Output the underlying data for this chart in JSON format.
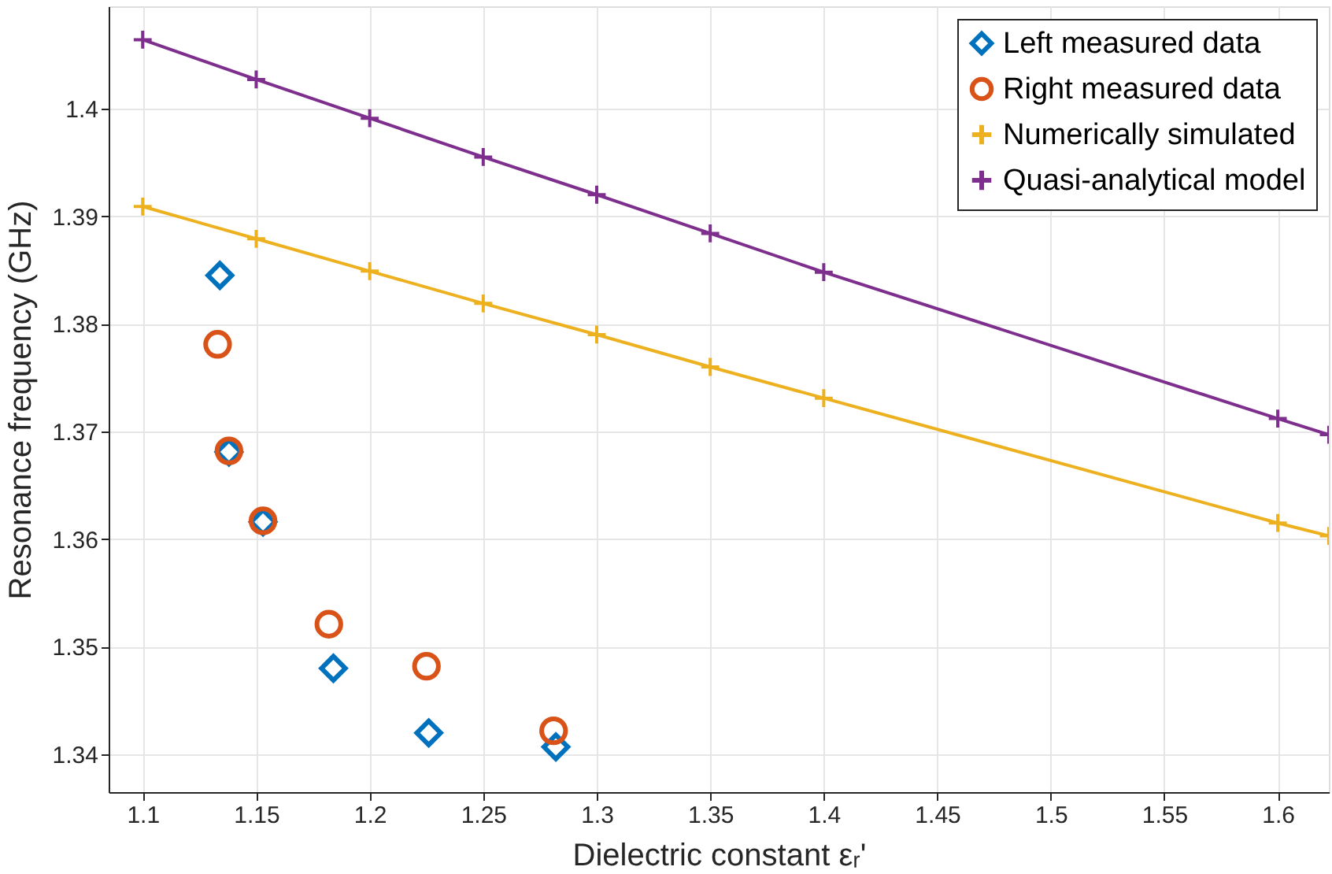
{
  "chart_data": {
    "type": "scatter",
    "xlabel": "Dielectric constant εᵣ'",
    "ylabel": "Resonance frequency (GHz)",
    "xlim": [
      1.085,
      1.6225
    ],
    "ylim": [
      1.3365,
      1.4095
    ],
    "xticks": [
      1.1,
      1.15,
      1.2,
      1.25,
      1.3,
      1.35,
      1.4,
      1.45,
      1.5,
      1.55,
      1.6
    ],
    "yticks": [
      1.34,
      1.35,
      1.36,
      1.37,
      1.38,
      1.39,
      1.4
    ],
    "grid": true,
    "legend": "top right",
    "series": [
      {
        "name": "Left measured data",
        "type": "scatter",
        "marker": "diamond",
        "color": "#0072bd",
        "x": [
          1.134,
          1.138,
          1.153,
          1.184,
          1.226,
          1.282
        ],
        "values": [
          1.3845,
          1.3681,
          1.3616,
          1.348,
          1.342,
          1.3407
        ]
      },
      {
        "name": "Right measured data",
        "type": "scatter",
        "marker": "circle",
        "color": "#d95319",
        "x": [
          1.133,
          1.138,
          1.153,
          1.182,
          1.225,
          1.281
        ],
        "values": [
          1.3781,
          1.3682,
          1.3617,
          1.3521,
          1.3482,
          1.3422
        ]
      },
      {
        "name": "Numerically simulated",
        "type": "line",
        "marker": "cross",
        "color": "#edb120",
        "x": [
          1.1,
          1.15,
          1.2,
          1.25,
          1.3,
          1.35,
          1.4,
          1.6,
          1.6225
        ],
        "values": [
          1.3909,
          1.3879,
          1.3849,
          1.3819,
          1.379,
          1.376,
          1.3731,
          1.3615,
          1.3603
        ]
      },
      {
        "name": "Quasi-analytical model",
        "type": "line",
        "marker": "cross",
        "color": "#7e2f8e",
        "x": [
          1.1,
          1.15,
          1.2,
          1.25,
          1.3,
          1.35,
          1.4,
          1.6,
          1.6225
        ],
        "values": [
          1.4064,
          1.4027,
          1.3991,
          1.3955,
          1.392,
          1.3884,
          1.3848,
          1.3712,
          1.3697
        ]
      }
    ]
  }
}
